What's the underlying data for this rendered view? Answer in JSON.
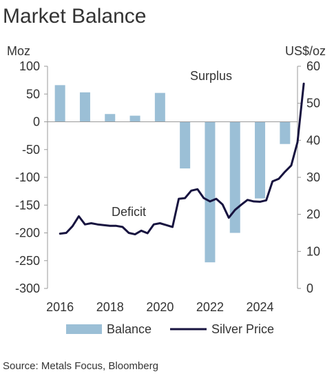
{
  "colors": {
    "bar": "#9bbfd6",
    "line": "#17133f",
    "axis": "#9a9a9a",
    "text": "#333333"
  },
  "chart_data": {
    "type": "bar",
    "title": "Market Balance",
    "left_axis": {
      "unit": "Moz",
      "ylim": [
        -300,
        100
      ],
      "ticks": [
        100,
        50,
        0,
        -50,
        -100,
        -150,
        -200,
        -250,
        -300
      ]
    },
    "right_axis": {
      "unit": "US$/oz",
      "ylim": [
        0,
        60
      ],
      "ticks": [
        60,
        50,
        40,
        30,
        20,
        10,
        0
      ]
    },
    "x_axis": {
      "range": [
        2015.5,
        2025.5
      ],
      "ticks": [
        "2016",
        "2018",
        "2020",
        "2022",
        "2024"
      ]
    },
    "grid": false,
    "legend_position": "bottom",
    "series": [
      {
        "name": "Balance",
        "type": "bar",
        "axis": "left",
        "x": [
          2016,
          2017,
          2018,
          2019,
          2020,
          2021,
          2022,
          2023,
          2024,
          2025
        ],
        "values": [
          66,
          53,
          14,
          11,
          52,
          -84,
          -253,
          -200,
          -138,
          -40
        ]
      },
      {
        "name": "Silver Price",
        "type": "line",
        "axis": "right",
        "points": [
          [
            2016.0,
            14.8
          ],
          [
            2016.25,
            15.0
          ],
          [
            2016.5,
            16.8
          ],
          [
            2016.75,
            19.5
          ],
          [
            2017.0,
            17.3
          ],
          [
            2017.25,
            17.6
          ],
          [
            2017.5,
            17.3
          ],
          [
            2017.75,
            17.1
          ],
          [
            2018.0,
            16.9
          ],
          [
            2018.25,
            16.9
          ],
          [
            2018.5,
            16.6
          ],
          [
            2018.75,
            15.0
          ],
          [
            2019.0,
            14.6
          ],
          [
            2019.25,
            15.6
          ],
          [
            2019.5,
            14.9
          ],
          [
            2019.75,
            17.3
          ],
          [
            2020.0,
            17.6
          ],
          [
            2020.25,
            17.1
          ],
          [
            2020.5,
            16.6
          ],
          [
            2020.75,
            24.2
          ],
          [
            2021.0,
            24.4
          ],
          [
            2021.25,
            26.4
          ],
          [
            2021.5,
            26.8
          ],
          [
            2021.75,
            24.4
          ],
          [
            2022.0,
            23.5
          ],
          [
            2022.25,
            24.2
          ],
          [
            2022.5,
            22.7
          ],
          [
            2022.75,
            19.1
          ],
          [
            2023.0,
            21.2
          ],
          [
            2023.25,
            22.6
          ],
          [
            2023.5,
            23.9
          ],
          [
            2023.75,
            23.5
          ],
          [
            2024.0,
            23.4
          ],
          [
            2024.25,
            23.8
          ],
          [
            2024.5,
            28.9
          ],
          [
            2024.75,
            29.6
          ],
          [
            2025.0,
            31.5
          ],
          [
            2025.25,
            33.2
          ],
          [
            2025.5,
            39.5
          ],
          [
            2025.75,
            55.3
          ]
        ]
      }
    ],
    "annotations": [
      "Surplus",
      "Deficit"
    ],
    "source": "Source: Metals Focus, Bloomberg"
  }
}
